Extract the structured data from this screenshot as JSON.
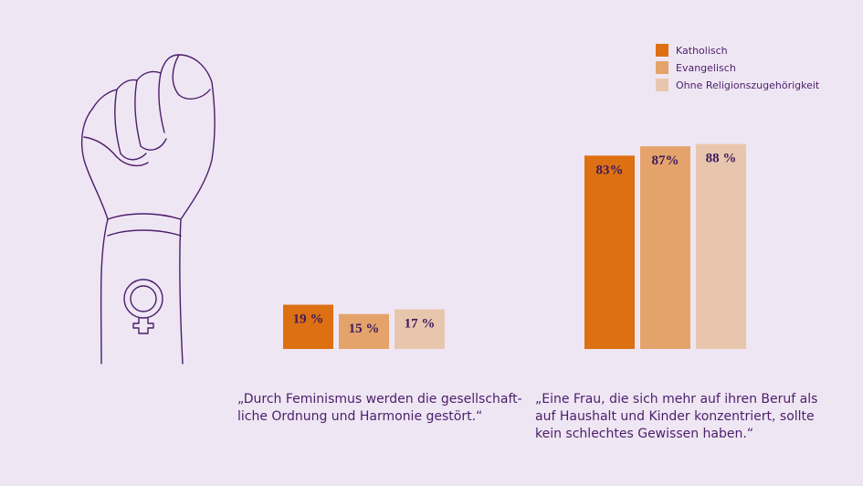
{
  "colors": {
    "background": "#efe6f3",
    "katholisch": "#dd7012",
    "evangelisch": "#e4a36b",
    "ohne": "#e8c6ae",
    "text": "#4b1e6b",
    "illustration": "#4b1e6b"
  },
  "illustration": {
    "icon": "raised-fist-with-female-symbol-icon"
  },
  "legend": {
    "items": [
      {
        "label": "Katholisch",
        "color": "#dd7012"
      },
      {
        "label": "Evangelisch",
        "color": "#e4a36b"
      },
      {
        "label": "Ohne Religionszugehörigkeit",
        "color": "#e8c6ae"
      }
    ]
  },
  "captions": {
    "chart1": "„Durch Feminismus werden die gesellschaft-\nliche Ordnung und Harmonie gestört.“",
    "chart2": "„Eine Frau, die sich mehr auf ihren Beruf als\nauf Haushalt und Kinder konzentriert, sollte\nkein schlechtes Gewissen haben.“"
  },
  "chart_data": [
    {
      "type": "bar",
      "title": "„Durch Feminismus werden die gesellschaftliche Ordnung und Harmonie gestört.“",
      "series": [
        {
          "name": "Katholisch",
          "value": 19,
          "label": "19 %"
        },
        {
          "name": "Evangelisch",
          "value": 15,
          "label": "15 %"
        },
        {
          "name": "Ohne Religionszugehörigkeit",
          "value": 17,
          "label": "17 %"
        }
      ],
      "unit": "%"
    },
    {
      "type": "bar",
      "title": "„Eine Frau, die sich mehr auf ihren Beruf als auf Haushalt und Kinder konzentriert, sollte kein schlechtes Gewissen haben.“",
      "series": [
        {
          "name": "Katholisch",
          "value": 83,
          "label": "83%"
        },
        {
          "name": "Evangelisch",
          "value": 87,
          "label": "87%"
        },
        {
          "name": "Ohne Religionszugehörigkeit",
          "value": 88,
          "label": "88 %"
        }
      ],
      "unit": "%"
    }
  ]
}
